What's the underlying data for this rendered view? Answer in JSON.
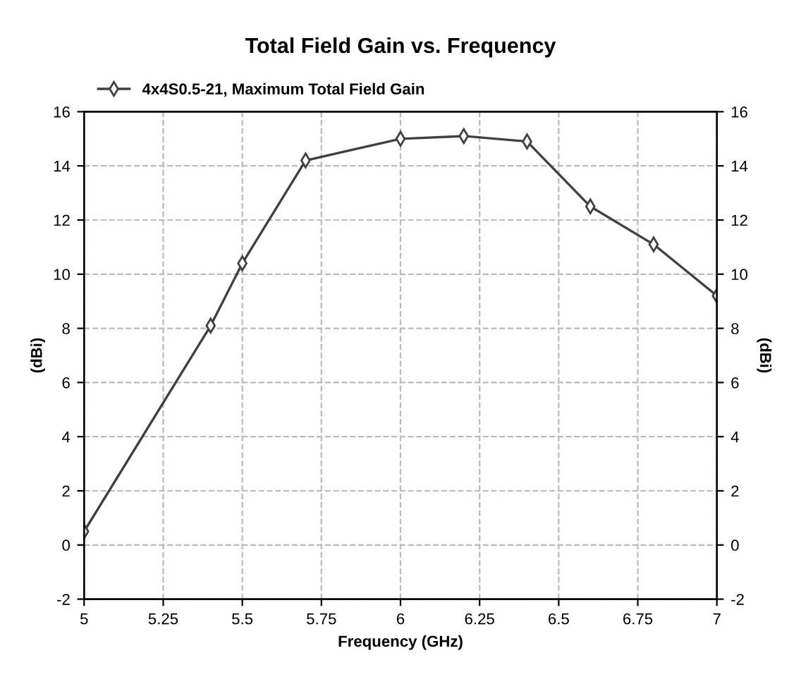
{
  "chart_data": {
    "type": "line",
    "title": "Total Field Gain vs. Frequency",
    "xlabel": "Frequency (GHz)",
    "ylabel": "(dBi)",
    "y2label": "(dBi)",
    "x": [
      5,
      5.4,
      5.5,
      5.7,
      6.0,
      6.2,
      6.4,
      6.6,
      6.8,
      7.0
    ],
    "series": [
      {
        "name": "4x4S0.5-21, Maximum Total Field Gain",
        "color": "#404040",
        "values": [
          0.5,
          8.1,
          10.4,
          14.2,
          15.0,
          15.1,
          14.9,
          12.5,
          11.1,
          9.2
        ]
      }
    ],
    "xlim": [
      5,
      7
    ],
    "xticks": [
      5,
      5.25,
      5.5,
      5.75,
      6,
      6.25,
      6.5,
      6.75,
      7
    ],
    "ylim": [
      -2,
      16
    ],
    "yticks": [
      -2,
      0,
      2,
      4,
      6,
      8,
      10,
      12,
      14,
      16
    ],
    "y2lim": [
      -2,
      16
    ],
    "y2ticks": [
      -2,
      0,
      2,
      4,
      6,
      8,
      10,
      12,
      14,
      16
    ],
    "grid": true,
    "legend": "top left",
    "marker": "diamond",
    "line_style": "solid"
  }
}
